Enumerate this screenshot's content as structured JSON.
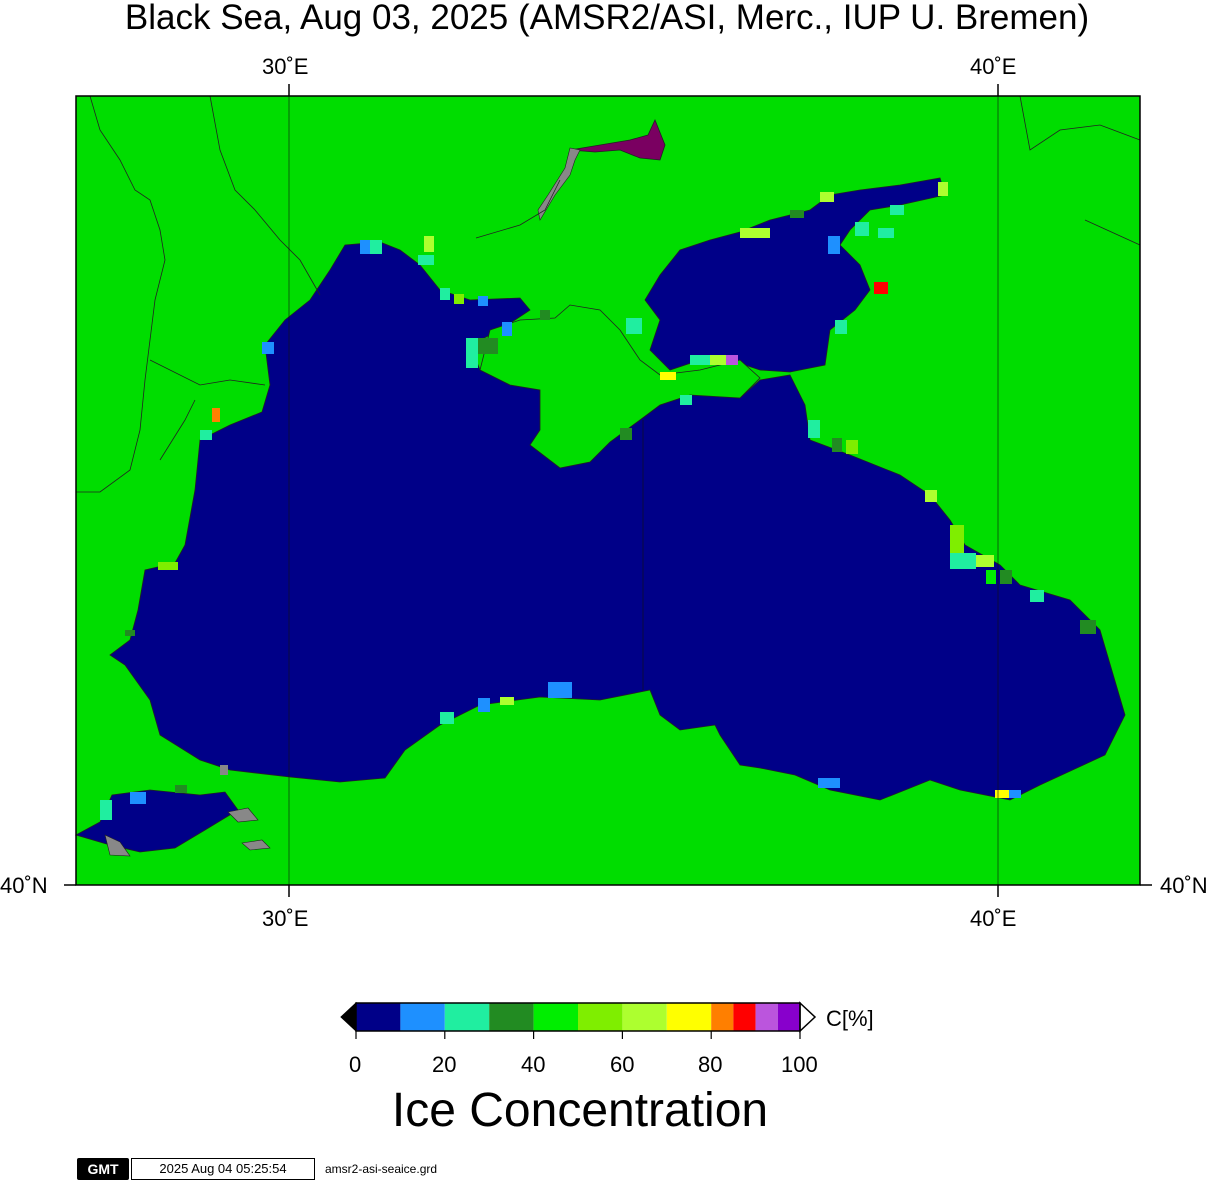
{
  "title": "Black Sea, Aug 03, 2025 (AMSR2/ASI, Merc., IUP U. Bremen)",
  "map": {
    "lon_ticks": [
      {
        "label": "30˚E",
        "lon": 30
      },
      {
        "label": "40˚E",
        "lon": 40
      }
    ],
    "lat_ticks": [
      {
        "label": "40˚N",
        "lat": 40
      }
    ],
    "colors": {
      "water": "#000088",
      "land": "#00dd00",
      "coast": "#222222",
      "masked_land": "#888888",
      "high_conc": "#7a0061"
    }
  },
  "colorbar": {
    "title": "Ice Concentration",
    "unit": "C[%]",
    "tick_labels": [
      "0",
      "20",
      "40",
      "60",
      "80",
      "100"
    ],
    "range": [
      0,
      100
    ],
    "bins": [
      {
        "from": 0,
        "to": 10,
        "color": "#000088"
      },
      {
        "from": 10,
        "to": 20,
        "color": "#1e90ff"
      },
      {
        "from": 20,
        "to": 30,
        "color": "#20eea0"
      },
      {
        "from": 30,
        "to": 40,
        "color": "#228b22"
      },
      {
        "from": 40,
        "to": 50,
        "color": "#00ee00"
      },
      {
        "from": 50,
        "to": 60,
        "color": "#7fee00"
      },
      {
        "from": 60,
        "to": 70,
        "color": "#adff2f"
      },
      {
        "from": 70,
        "to": 80,
        "color": "#ffff00"
      },
      {
        "from": 80,
        "to": 85,
        "color": "#ff7f00"
      },
      {
        "from": 85,
        "to": 90,
        "color": "#ff0000"
      },
      {
        "from": 90,
        "to": 95,
        "color": "#bb55dd"
      },
      {
        "from": 95,
        "to": 100,
        "color": "#8800cc"
      }
    ]
  },
  "footer": {
    "gmt_logo": "GMT",
    "timestamp": "2025 Aug 04 05:25:54",
    "filename": "amsr2-asi-seaice.grd"
  }
}
